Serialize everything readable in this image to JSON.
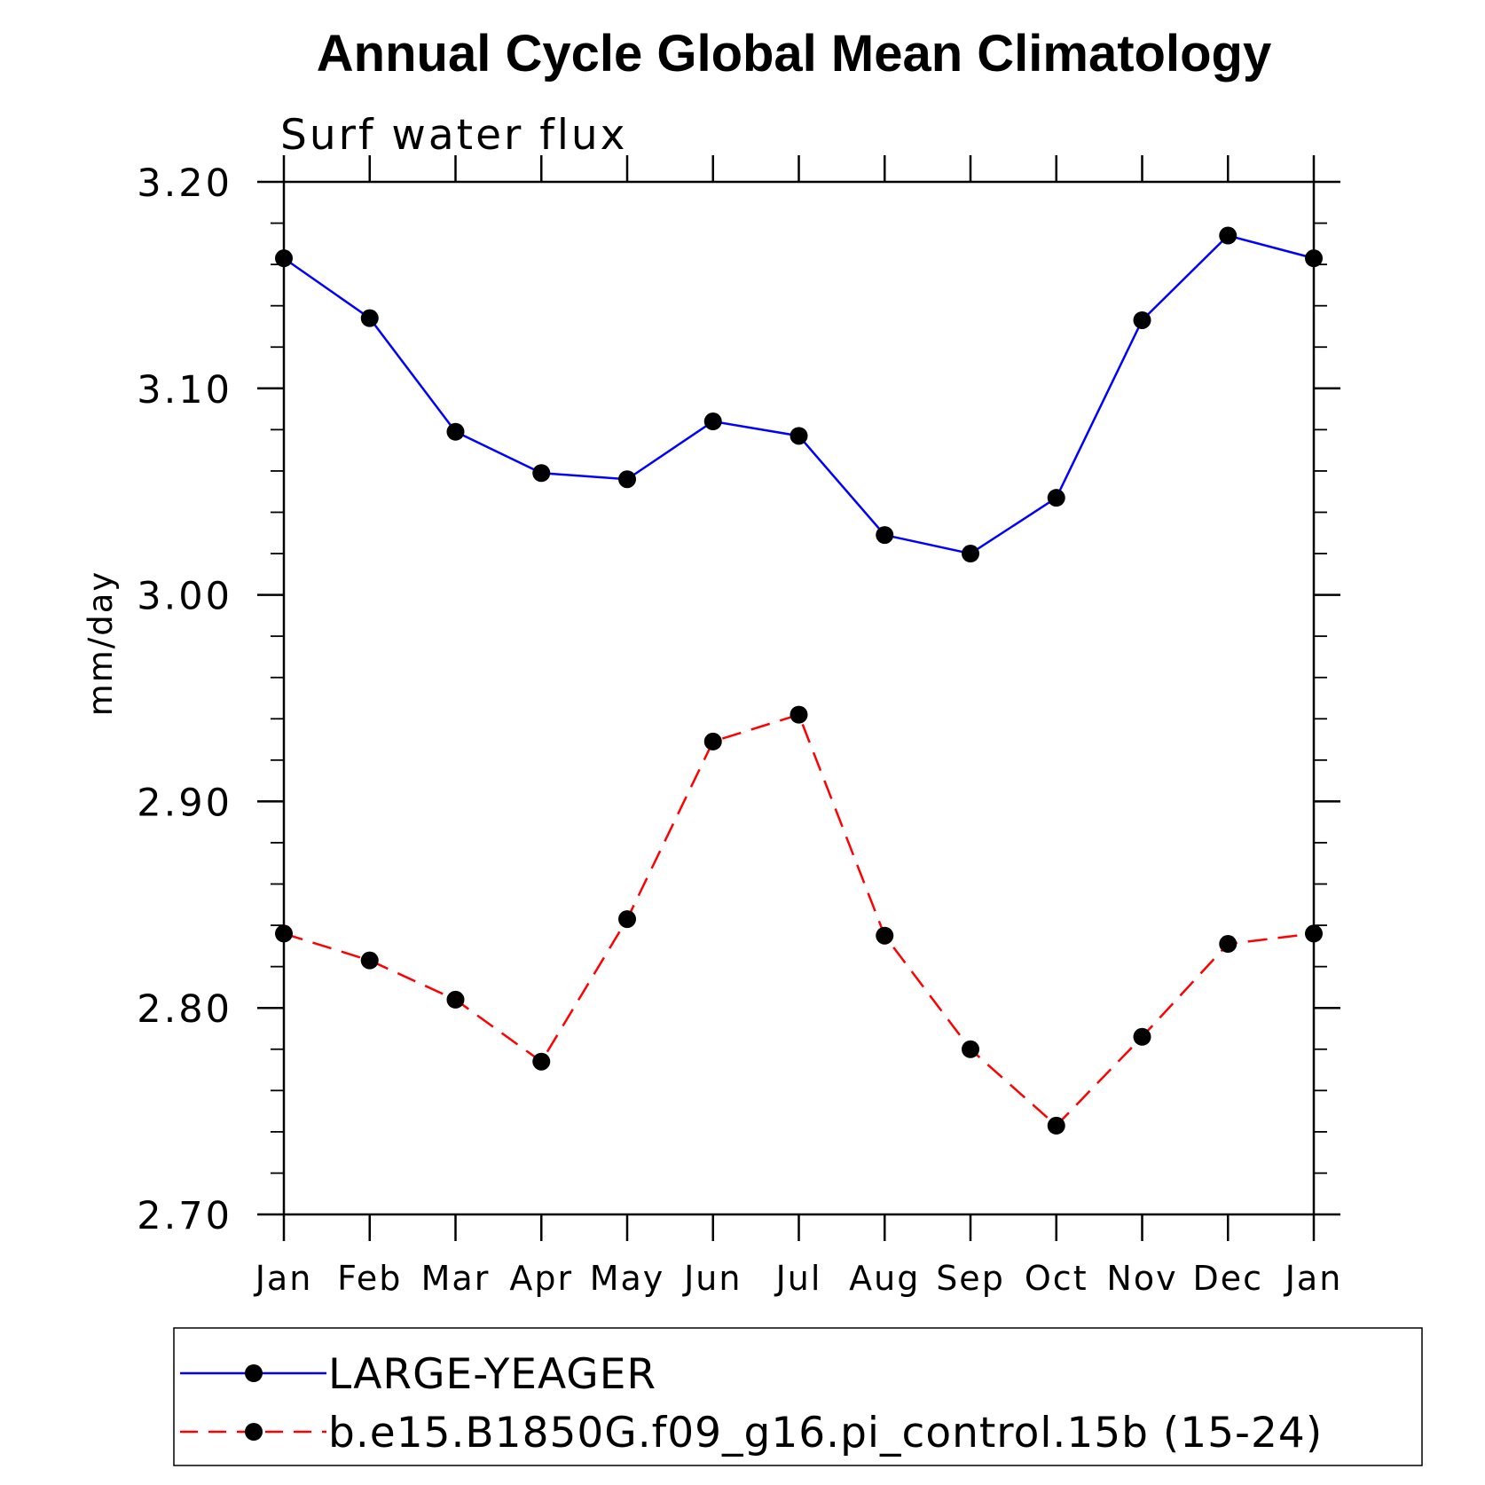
{
  "chart_data": {
    "type": "line",
    "title": "Annual Cycle Global Mean Climatology",
    "subtitle": "Surf water flux",
    "xlabel": "",
    "ylabel": "mm/day",
    "categories": [
      "Jan",
      "Feb",
      "Mar",
      "Apr",
      "May",
      "Jun",
      "Jul",
      "Aug",
      "Sep",
      "Oct",
      "Nov",
      "Dec",
      "Jan"
    ],
    "ylim": [
      2.7,
      3.2
    ],
    "yticks": [
      "2.70",
      "2.80",
      "2.90",
      "3.00",
      "3.10",
      "3.20"
    ],
    "grid": false,
    "legend_position": "bottom",
    "series": [
      {
        "name": "LARGE-YEAGER",
        "color": "#0000ff",
        "dash": "solid",
        "marker": "filled-circle",
        "values": [
          3.163,
          3.134,
          3.079,
          3.059,
          3.056,
          3.084,
          3.077,
          3.029,
          3.02,
          3.047,
          3.133,
          3.174,
          3.163
        ]
      },
      {
        "name": "b.e15.B1850G.f09_g16.pi_control.15b (15-24)",
        "color": "#ff0000",
        "dash": "dashed",
        "marker": "filled-circle",
        "values": [
          2.836,
          2.823,
          2.804,
          2.774,
          2.843,
          2.929,
          2.942,
          2.835,
          2.78,
          2.743,
          2.786,
          2.831,
          2.836
        ]
      }
    ]
  }
}
